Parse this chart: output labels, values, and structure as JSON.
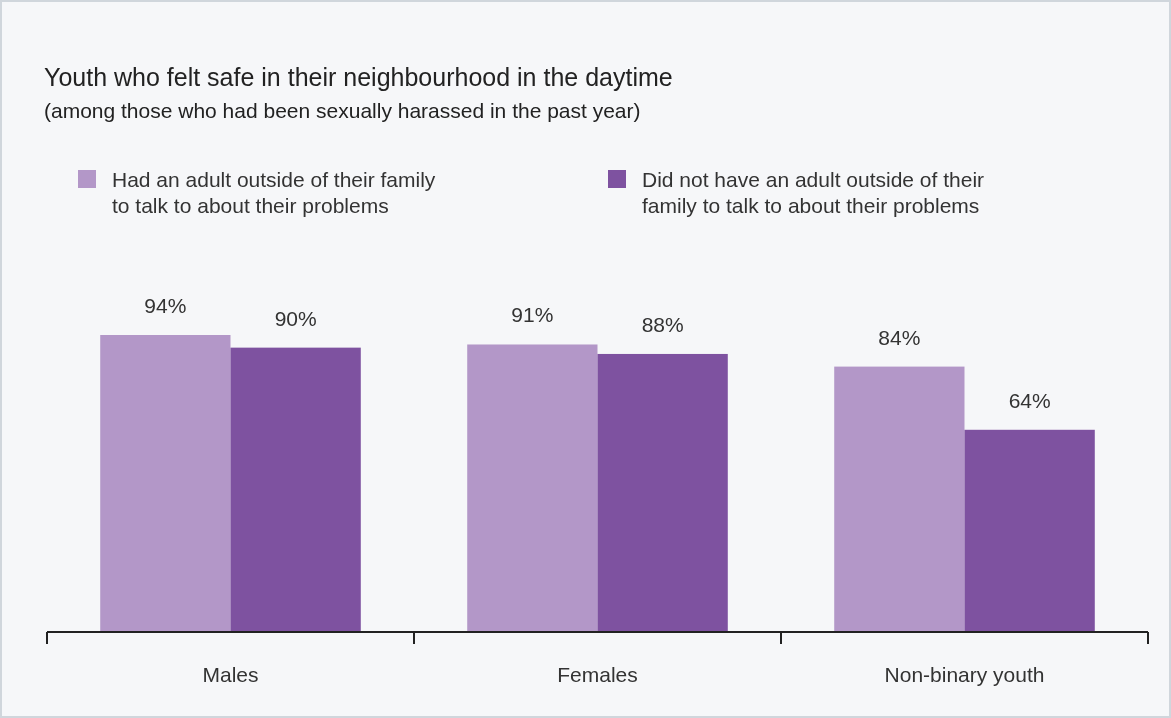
{
  "chart_data": {
    "type": "bar",
    "title": "Youth who felt safe in their neighbourhood in the daytime",
    "subtitle": "(among those who had been sexually harassed in the past year)",
    "categories": [
      "Males",
      "Females",
      "Non-binary youth"
    ],
    "series": [
      {
        "name": "Had an adult outside of their family to talk to about their problems",
        "color": "#b397c8",
        "values": [
          94,
          91,
          84
        ],
        "value_labels": [
          "94%",
          "91%",
          "84%"
        ]
      },
      {
        "name": "Did not have an adult outside of their family to talk to about their problems",
        "color": "#7e52a0",
        "values": [
          90,
          88,
          64
        ],
        "value_labels": [
          "90%",
          "88%",
          "64%"
        ]
      }
    ],
    "legend": "top",
    "grid": false
  }
}
